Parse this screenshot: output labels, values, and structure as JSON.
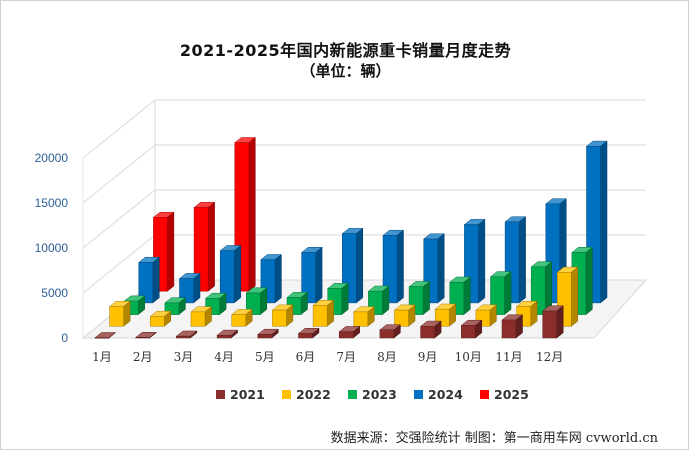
{
  "chart_data": {
    "type": "bar",
    "title": "2021-2025年国内新能源重卡销量月度走势",
    "subtitle": "（单位：辆）",
    "categories": [
      "1月",
      "2月",
      "3月",
      "4月",
      "5月",
      "6月",
      "7月",
      "8月",
      "9月",
      "10月",
      "11月",
      "12月"
    ],
    "series": [
      {
        "name": "2021",
        "color": "#8b2e2b",
        "values": [
          30,
          60,
          200,
          300,
          400,
          500,
          700,
          900,
          1300,
          1400,
          2000,
          3000
        ]
      },
      {
        "name": "2022",
        "color": "#ffc000",
        "values": [
          2200,
          1100,
          1600,
          1300,
          1800,
          2300,
          1600,
          1800,
          1900,
          1800,
          2200,
          6000
        ]
      },
      {
        "name": "2023",
        "color": "#00b050",
        "values": [
          1500,
          1300,
          1800,
          2400,
          1900,
          2900,
          2600,
          3100,
          3600,
          4200,
          5300,
          6900
        ]
      },
      {
        "name": "2024",
        "color": "#0070c0",
        "values": [
          4500,
          2700,
          5800,
          4800,
          5600,
          7700,
          7500,
          7100,
          8700,
          9000,
          11000,
          17400
        ]
      },
      {
        "name": "2025",
        "color": "#ff0000",
        "values": [
          8200,
          9300,
          16500,
          null,
          null,
          null,
          null,
          null,
          null,
          null,
          null,
          null
        ]
      }
    ],
    "yticks": [
      0,
      5000,
      10000,
      15000,
      20000
    ],
    "ylim": [
      0,
      20000
    ],
    "grid": true,
    "legend": "bottom"
  },
  "source": "数据来源：交强险统计  制图：第一商用车网 cvworld.cn"
}
